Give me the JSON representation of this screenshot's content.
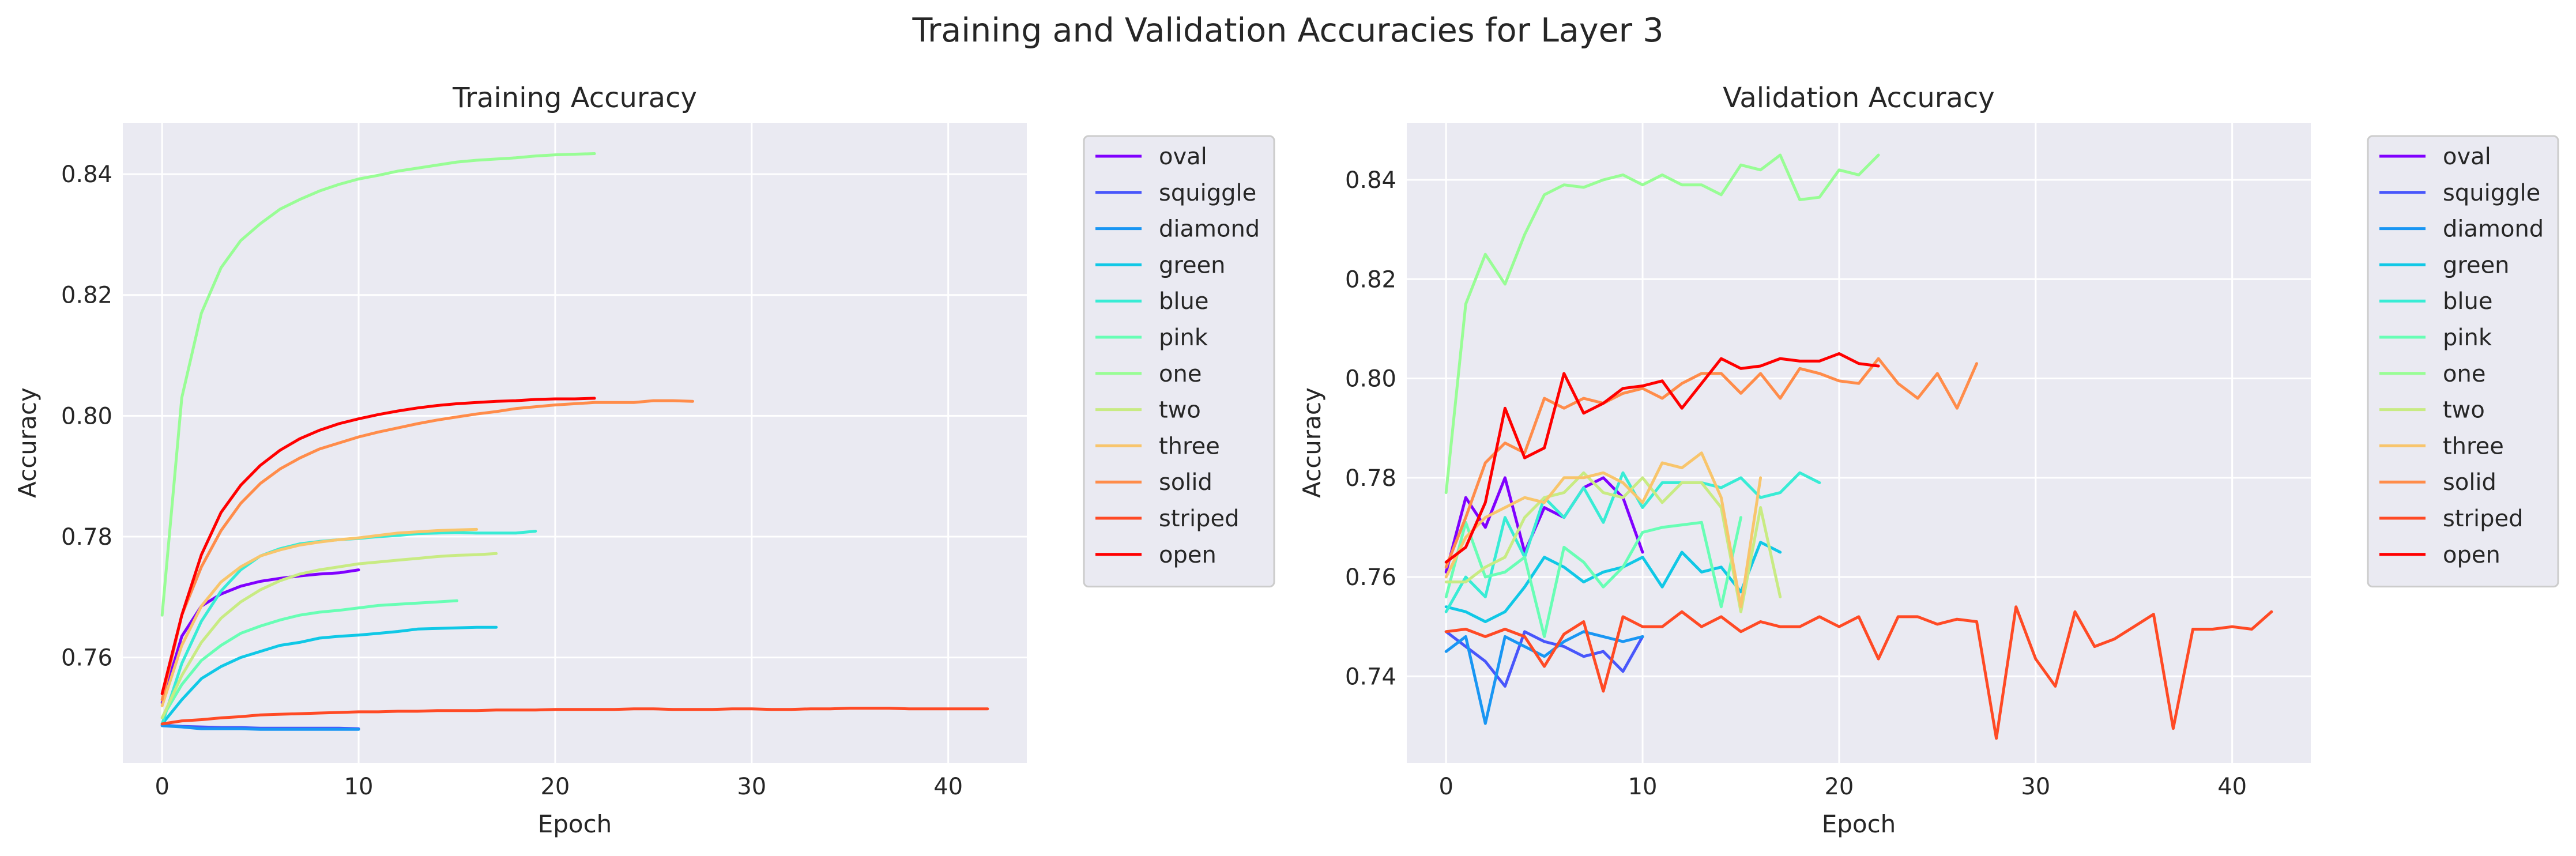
{
  "figure": {
    "suptitle": "Training and Validation Accuracies for Layer 3"
  },
  "chart_data": [
    {
      "type": "line",
      "title": "Training Accuracy",
      "xlabel": "Epoch",
      "ylabel": "Accuracy",
      "xlim": [
        -2,
        44
      ],
      "ylim": [
        0.7425,
        0.8485
      ],
      "xticks": [
        0,
        10,
        20,
        30,
        40
      ],
      "yticks": [
        0.76,
        0.78,
        0.8,
        0.82,
        0.84
      ],
      "yticklabels": [
        "0.76",
        "0.78",
        "0.80",
        "0.82",
        "0.84"
      ],
      "grid": true,
      "legend_position": "outside-right",
      "series": [
        {
          "name": "oval",
          "color": "#8000ff",
          "values": [
            0.7525,
            0.7635,
            0.7685,
            0.7705,
            0.7718,
            0.7726,
            0.7731,
            0.7735,
            0.7738,
            0.774,
            0.7745
          ]
        },
        {
          "name": "squiggle",
          "color": "#4856fb",
          "values": [
            0.7488,
            0.7486,
            0.7485,
            0.7484,
            0.7484,
            0.7483,
            0.7483,
            0.7483,
            0.7483,
            0.7483,
            0.7482
          ]
        },
        {
          "name": "diamond",
          "color": "#1996f3",
          "values": [
            0.7487,
            0.7485,
            0.7482,
            0.7482,
            0.7482,
            0.7481,
            0.7481,
            0.7481,
            0.7481,
            0.7481,
            0.7481
          ]
        },
        {
          "name": "green",
          "color": "#10c8e6",
          "values": [
            0.749,
            0.753,
            0.7565,
            0.7585,
            0.76,
            0.761,
            0.762,
            0.7625,
            0.7632,
            0.7635,
            0.7637,
            0.764,
            0.7643,
            0.7647,
            0.7648,
            0.7649,
            0.765,
            0.765
          ]
        },
        {
          "name": "blue",
          "color": "#38ecd5",
          "values": [
            0.749,
            0.759,
            0.766,
            0.771,
            0.7745,
            0.7768,
            0.778,
            0.7788,
            0.7792,
            0.7795,
            0.7797,
            0.78,
            0.7802,
            0.7805,
            0.7806,
            0.7807,
            0.7806,
            0.7806,
            0.7806,
            0.7809
          ]
        },
        {
          "name": "pink",
          "color": "#68feb5",
          "values": [
            0.75,
            0.7555,
            0.7595,
            0.762,
            0.764,
            0.7652,
            0.7662,
            0.767,
            0.7675,
            0.7678,
            0.7682,
            0.7686,
            0.7688,
            0.769,
            0.7692,
            0.7694
          ]
        },
        {
          "name": "one",
          "color": "#98fd95",
          "values": [
            0.767,
            0.803,
            0.817,
            0.8245,
            0.829,
            0.8318,
            0.8342,
            0.8358,
            0.8372,
            0.8383,
            0.8392,
            0.8398,
            0.8405,
            0.841,
            0.8415,
            0.842,
            0.8423,
            0.8425,
            0.8427,
            0.843,
            0.8432,
            0.8433,
            0.8434
          ]
        },
        {
          "name": "two",
          "color": "#c8eb83",
          "values": [
            0.75,
            0.757,
            0.7625,
            0.7665,
            0.7692,
            0.7712,
            0.7727,
            0.7738,
            0.7745,
            0.775,
            0.7755,
            0.7758,
            0.7761,
            0.7764,
            0.7767,
            0.7769,
            0.777,
            0.7772
          ]
        },
        {
          "name": "three",
          "color": "#f8c56c",
          "values": [
            0.752,
            0.762,
            0.7685,
            0.7725,
            0.775,
            0.7768,
            0.7778,
            0.7786,
            0.7791,
            0.7795,
            0.7798,
            0.7802,
            0.7806,
            0.7808,
            0.781,
            0.7811,
            0.7812
          ]
        },
        {
          "name": "solid",
          "color": "#ff8c4a",
          "values": [
            0.753,
            0.767,
            0.775,
            0.781,
            0.7855,
            0.7888,
            0.7912,
            0.793,
            0.7945,
            0.7955,
            0.7965,
            0.7973,
            0.798,
            0.7987,
            0.7993,
            0.7998,
            0.8003,
            0.8007,
            0.8012,
            0.8015,
            0.8018,
            0.802,
            0.8022,
            0.8022,
            0.8022,
            0.8025,
            0.8025,
            0.8024
          ]
        },
        {
          "name": "striped",
          "color": "#ff4a25",
          "values": [
            0.749,
            0.7495,
            0.7497,
            0.75,
            0.7502,
            0.7505,
            0.7506,
            0.7507,
            0.7508,
            0.7509,
            0.751,
            0.751,
            0.7511,
            0.7511,
            0.7512,
            0.7512,
            0.7512,
            0.7513,
            0.7513,
            0.7513,
            0.7514,
            0.7514,
            0.7514,
            0.7514,
            0.7515,
            0.7515,
            0.7514,
            0.7514,
            0.7514,
            0.7515,
            0.7515,
            0.7514,
            0.7514,
            0.7515,
            0.7515,
            0.7516,
            0.7516,
            0.7516,
            0.7515,
            0.7515,
            0.7515,
            0.7515,
            0.7515
          ]
        },
        {
          "name": "open",
          "color": "#ff0000",
          "values": [
            0.754,
            0.767,
            0.777,
            0.784,
            0.7885,
            0.7918,
            0.7943,
            0.7962,
            0.7976,
            0.7987,
            0.7995,
            0.8002,
            0.8008,
            0.8013,
            0.8017,
            0.802,
            0.8022,
            0.8024,
            0.8025,
            0.8027,
            0.8028,
            0.8028,
            0.8029
          ]
        }
      ]
    },
    {
      "type": "line",
      "title": "Validation Accuracy",
      "xlabel": "Epoch",
      "ylabel": "Accuracy",
      "xlim": [
        -2,
        44
      ],
      "ylim": [
        0.7225,
        0.8515
      ],
      "xticks": [
        0,
        10,
        20,
        30,
        40
      ],
      "yticks": [
        0.74,
        0.76,
        0.78,
        0.8,
        0.82,
        0.84
      ],
      "yticklabels": [
        "0.74",
        "0.76",
        "0.78",
        "0.80",
        "0.82",
        "0.84"
      ],
      "grid": true,
      "legend_position": "outside-right",
      "series": [
        {
          "name": "oval",
          "color": "#8000ff",
          "values": [
            0.761,
            0.776,
            0.77,
            0.78,
            0.765,
            0.774,
            0.772,
            0.778,
            0.78,
            0.776,
            0.765
          ]
        },
        {
          "name": "squiggle",
          "color": "#4856fb",
          "values": [
            0.749,
            0.746,
            0.743,
            0.738,
            0.749,
            0.747,
            0.746,
            0.744,
            0.745,
            0.741,
            0.748
          ]
        },
        {
          "name": "diamond",
          "color": "#1996f3",
          "values": [
            0.745,
            0.748,
            0.7305,
            0.748,
            0.746,
            0.744,
            0.747,
            0.749,
            0.748,
            0.747,
            0.748
          ]
        },
        {
          "name": "green",
          "color": "#10c8e6",
          "values": [
            0.754,
            0.753,
            0.751,
            0.753,
            0.758,
            0.764,
            0.762,
            0.759,
            0.761,
            0.762,
            0.764,
            0.758,
            0.765,
            0.761,
            0.762,
            0.757,
            0.767,
            0.765
          ]
        },
        {
          "name": "blue",
          "color": "#38ecd5",
          "values": [
            0.753,
            0.76,
            0.756,
            0.772,
            0.764,
            0.776,
            0.772,
            0.778,
            0.771,
            0.781,
            0.774,
            0.779,
            0.779,
            0.779,
            0.778,
            0.78,
            0.776,
            0.777,
            0.781,
            0.779
          ]
        },
        {
          "name": "pink",
          "color": "#68feb5",
          "values": [
            0.756,
            0.771,
            0.76,
            0.761,
            0.764,
            0.748,
            0.766,
            0.763,
            0.758,
            0.762,
            0.769,
            0.77,
            0.7705,
            0.771,
            0.754,
            0.772
          ]
        },
        {
          "name": "one",
          "color": "#98fd95",
          "values": [
            0.777,
            0.815,
            0.825,
            0.819,
            0.829,
            0.837,
            0.839,
            0.8385,
            0.84,
            0.841,
            0.839,
            0.841,
            0.839,
            0.839,
            0.837,
            0.843,
            0.842,
            0.845,
            0.836,
            0.8365,
            0.842,
            0.841,
            0.845
          ]
        },
        {
          "name": "two",
          "color": "#c8eb83",
          "values": [
            0.759,
            0.759,
            0.762,
            0.764,
            0.772,
            0.776,
            0.777,
            0.781,
            0.777,
            0.776,
            0.78,
            0.775,
            0.779,
            0.779,
            0.774,
            0.753,
            0.774,
            0.756
          ]
        },
        {
          "name": "three",
          "color": "#f8c56c",
          "values": [
            0.76,
            0.768,
            0.772,
            0.774,
            0.776,
            0.775,
            0.78,
            0.78,
            0.781,
            0.779,
            0.775,
            0.783,
            0.782,
            0.785,
            0.776,
            0.754,
            0.78
          ]
        },
        {
          "name": "solid",
          "color": "#ff8c4a",
          "values": [
            0.762,
            0.772,
            0.783,
            0.787,
            0.785,
            0.796,
            0.794,
            0.796,
            0.795,
            0.797,
            0.798,
            0.796,
            0.799,
            0.801,
            0.801,
            0.797,
            0.801,
            0.796,
            0.802,
            0.801,
            0.7995,
            0.799,
            0.804,
            0.799,
            0.796,
            0.801,
            0.794,
            0.803
          ]
        },
        {
          "name": "striped",
          "color": "#ff4a25",
          "values": [
            0.749,
            0.7495,
            0.748,
            0.7495,
            0.748,
            0.742,
            0.7485,
            0.751,
            0.737,
            0.752,
            0.75,
            0.75,
            0.753,
            0.75,
            0.752,
            0.749,
            0.751,
            0.75,
            0.75,
            0.752,
            0.75,
            0.752,
            0.7435,
            0.752,
            0.752,
            0.7505,
            0.7515,
            0.751,
            0.7275,
            0.754,
            0.7435,
            0.738,
            0.753,
            0.746,
            0.7475,
            0.75,
            0.7525,
            0.7295,
            0.7495,
            0.7495,
            0.75,
            0.7495,
            0.753
          ]
        },
        {
          "name": "open",
          "color": "#ff0000",
          "values": [
            0.763,
            0.766,
            0.775,
            0.794,
            0.784,
            0.786,
            0.801,
            0.793,
            0.795,
            0.798,
            0.7985,
            0.7995,
            0.794,
            0.799,
            0.804,
            0.802,
            0.8025,
            0.804,
            0.8035,
            0.8035,
            0.805,
            0.803,
            0.8025
          ]
        }
      ]
    }
  ]
}
